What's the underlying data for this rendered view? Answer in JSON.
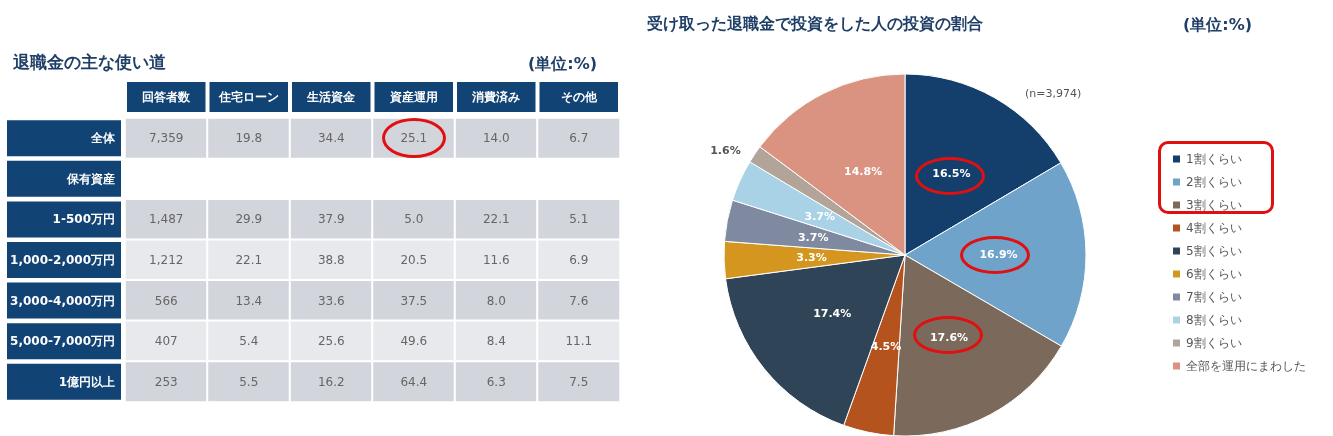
{
  "chart_data": [
    {
      "type": "heatmap",
      "title": "退職金の主な使い道",
      "annotations": [
        "(単位:%)"
      ],
      "categories": [
        "回答者数",
        "住宅ローン",
        "生活資金",
        "資産運用",
        "消費済み",
        "その他"
      ],
      "y_categories": [
        "全体",
        "保有資産",
        "1-500万円",
        "1,000-2,000万円",
        "3,000-4,000万円",
        "5,000-7,000万円",
        "1億円以上"
      ],
      "cells": [
        [
          7359,
          19.8,
          34.4,
          25.1,
          14.0,
          6.7
        ],
        [
          null,
          null,
          null,
          null,
          null,
          null
        ],
        [
          1487,
          29.9,
          37.9,
          5.0,
          22.1,
          5.1
        ],
        [
          1212,
          22.1,
          38.8,
          20.5,
          11.6,
          6.9
        ],
        [
          566,
          13.4,
          33.6,
          37.5,
          8.0,
          7.6
        ],
        [
          407,
          5.4,
          25.6,
          49.6,
          8.4,
          11.1
        ],
        [
          253,
          5.5,
          16.2,
          64.4,
          6.3,
          7.5
        ]
      ],
      "cell_labels": [
        [
          "7,359",
          "19.8",
          "34.4",
          "25.1",
          "14.0",
          "6.7"
        ],
        [
          null,
          null,
          null,
          null,
          null,
          null
        ],
        [
          "1,487",
          "29.9",
          "37.9",
          "5.0",
          "22.1",
          "5.1"
        ],
        [
          "1,212",
          "22.1",
          "38.8",
          "20.5",
          "11.6",
          "6.9"
        ],
        [
          "566",
          "13.4",
          "33.6",
          "37.5",
          "8.0",
          "7.6"
        ],
        [
          "407",
          "5.4",
          "25.6",
          "49.6",
          "8.4",
          "11.1"
        ],
        [
          "253",
          "5.5",
          "16.2",
          "64.4",
          "6.3",
          "7.5"
        ]
      ]
    },
    {
      "type": "pie",
      "title": "受け取った退職金で投資をした人の投資の割合",
      "annotations": [
        "(単位:%)",
        "(n=3,974)"
      ],
      "categories": [
        "1割くらい",
        "2割くらい",
        "3割くらい",
        "4割くらい",
        "5割くらい",
        "6割くらい",
        "7割くらい",
        "8割くらい",
        "9割くらい",
        "全部を運用にまわした"
      ],
      "values": [
        16.5,
        16.9,
        17.6,
        4.5,
        17.4,
        3.3,
        3.7,
        3.7,
        1.6,
        14.8
      ],
      "value_labels": [
        "16.5%",
        "16.9%",
        "17.6%",
        "4.5%",
        "17.4%",
        "3.3%",
        "3.7%",
        "3.7%",
        "1.6%",
        "14.8%"
      ],
      "colors": [
        "#143f6c",
        "#6fa3c9",
        "#7b6a5b",
        "#b5531f",
        "#2f4456",
        "#d4961f",
        "#7f8aa0",
        "#a9d2e6",
        "#b3a49a",
        "#d99380"
      ],
      "legend": "right"
    }
  ]
}
